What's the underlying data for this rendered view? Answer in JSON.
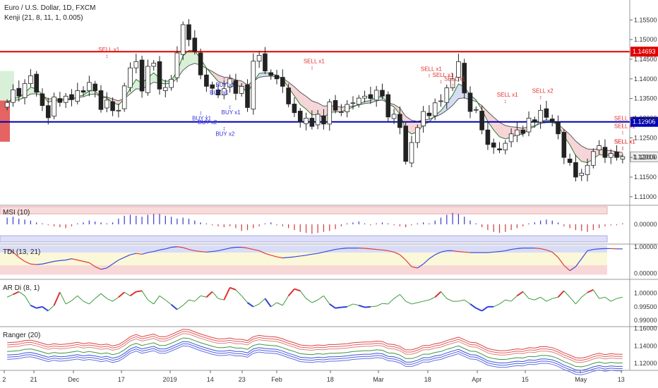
{
  "colors": {
    "up": "#ffffff",
    "down": "#222222",
    "wick": "#222222",
    "red_line": "#e00000",
    "blue_line": "#0000b4",
    "sell": "#e03030",
    "buy": "#3030e0",
    "cloud_red": "#f6d5d8",
    "cloud_green": "#d8f0d8",
    "cloud_blue": "#d6dcf4",
    "band_red": "#f5c6c6",
    "band_blue": "#c9cdf3",
    "band_yellow": "#fbf7d9"
  },
  "header": {
    "title": "Euro / U.S. Dollar, 1D, FXCM",
    "subtitle": "Kenji (21, 8, 11, 1, 0.005)"
  },
  "chart_data": [
    {
      "type": "candlestick",
      "title": "Euro / U.S. Dollar, 1D, FXCM",
      "ylim": [
        1.108,
        1.159
      ],
      "y_ticks": [
        "1.15500",
        "1.15000",
        "1.14500",
        "1.14000",
        "1.13500",
        "1.13000",
        "1.12500",
        "1.12000",
        "1.11500",
        "1.11000"
      ],
      "x_ticks": [
        "2",
        "21",
        "Dec",
        "17",
        "2019",
        "14",
        "23",
        "Feb",
        "18",
        "Mar",
        "18",
        "Apr",
        "15",
        "May",
        "13"
      ],
      "levels": [
        {
          "value": 1.14693,
          "label": "1.14693",
          "color": "#e00000"
        },
        {
          "value": 1.12906,
          "label": "1.12906",
          "color": "#0000b4"
        }
      ],
      "last_price": {
        "value": 1.12016,
        "label": "1.12016"
      },
      "close": [
        1.134,
        1.1372,
        1.1356,
        1.1388,
        1.1408,
        1.1366,
        1.1332,
        1.1301,
        1.1354,
        1.134,
        1.1356,
        1.1347,
        1.137,
        1.1366,
        1.1391,
        1.137,
        1.1322,
        1.1346,
        1.1319,
        1.132,
        1.1382,
        1.1428,
        1.1444,
        1.1369,
        1.1432,
        1.144,
        1.1374,
        1.1378,
        1.1399,
        1.1466,
        1.1538,
        1.15,
        1.147,
        1.141,
        1.1381,
        1.1376,
        1.1359,
        1.1375,
        1.14,
        1.1363,
        1.1381,
        1.1327,
        1.1445,
        1.146,
        1.142,
        1.1409,
        1.14,
        1.1381,
        1.1336,
        1.1314,
        1.129,
        1.13,
        1.1279,
        1.131,
        1.1285,
        1.1341,
        1.132,
        1.1316,
        1.1335,
        1.1339,
        1.1351,
        1.1356,
        1.135,
        1.1371,
        1.1356,
        1.1303,
        1.131,
        1.1276,
        1.119,
        1.1238,
        1.1276,
        1.1317,
        1.1306,
        1.1339,
        1.1344,
        1.1377,
        1.14,
        1.1444,
        1.1364,
        1.1317,
        1.1322,
        1.127,
        1.1233,
        1.1226,
        1.1219,
        1.1236,
        1.126,
        1.127,
        1.1261,
        1.13,
        1.129,
        1.132,
        1.1302,
        1.129,
        1.126,
        1.12,
        1.1187,
        1.115,
        1.116,
        1.118,
        1.1215,
        1.123,
        1.12,
        1.121,
        1.12,
        1.1202
      ],
      "series": [
        {
          "name": "MSI (10)",
          "ylim": [
            -1,
            1
          ],
          "ticks": [
            "0.00000"
          ],
          "values": [
            0.35,
            0.4,
            0.3,
            0.25,
            0.2,
            0.1,
            0.05,
            -0.05,
            -0.1,
            -0.15,
            -0.2,
            -0.1,
            0.05,
            0.1,
            0.2,
            0.15,
            0.1,
            0.05,
            0.1,
            0.3,
            0.45,
            0.5,
            0.45,
            0.4,
            0.5,
            0.55,
            0.55,
            0.45,
            0.4,
            0.3,
            0.35,
            0.3,
            0.2,
            0.1,
            0.05,
            -0.05,
            -0.1,
            -0.15,
            -0.1,
            -0.2,
            -0.35,
            -0.3,
            -0.2,
            -0.1,
            0.05,
            0.1,
            -0.05,
            -0.1,
            -0.2,
            -0.3,
            -0.4,
            -0.45,
            -0.5,
            -0.45,
            -0.4,
            -0.35,
            -0.25,
            -0.1,
            0.05,
            0.1,
            0.15,
            0.05,
            -0.05,
            0.05,
            0.1,
            0.05,
            -0.05,
            -0.1,
            -0.15,
            -0.05,
            0.05,
            0.1,
            0.05,
            0.2,
            0.35,
            0.5,
            0.6,
            0.55,
            0.4,
            0.2,
            0.05,
            -0.15,
            -0.3,
            -0.4,
            -0.45,
            -0.4,
            -0.3,
            -0.2,
            -0.1,
            0.05,
            0.1,
            0.2,
            0.25,
            0.2,
            0.1,
            -0.1,
            -0.2,
            -0.3,
            -0.35,
            -0.4,
            -0.3,
            -0.2,
            -0.1,
            -0.05,
            -0.05,
            0.05
          ]
        },
        {
          "name": "TDI (13, 21)",
          "ylim": [
            -0.2,
            1.1
          ],
          "ticks": [
            "1.00000",
            "0.00000"
          ],
          "values": [
            0.9,
            0.8,
            0.6,
            0.45,
            0.35,
            0.33,
            0.35,
            0.4,
            0.45,
            0.48,
            0.5,
            0.55,
            0.5,
            0.45,
            0.4,
            0.25,
            0.15,
            0.2,
            0.35,
            0.5,
            0.6,
            0.7,
            0.75,
            0.72,
            0.78,
            0.82,
            0.88,
            0.92,
            0.98,
            1.0,
            0.97,
            0.9,
            0.85,
            0.82,
            0.8,
            0.82,
            0.85,
            0.9,
            0.95,
            0.98,
            0.98,
            0.95,
            0.9,
            0.85,
            0.75,
            0.68,
            0.62,
            0.58,
            0.6,
            0.62,
            0.65,
            0.68,
            0.72,
            0.75,
            0.8,
            0.85,
            0.9,
            0.93,
            0.95,
            0.95,
            0.95,
            0.94,
            0.92,
            0.9,
            0.88,
            0.85,
            0.8,
            0.7,
            0.5,
            0.25,
            0.2,
            0.35,
            0.55,
            0.7,
            0.8,
            0.85,
            0.85,
            0.82,
            0.8,
            0.78,
            0.78,
            0.78,
            0.78,
            0.8,
            0.82,
            0.85,
            0.9,
            0.93,
            0.95,
            0.95,
            0.95,
            0.93,
            0.88,
            0.8,
            0.6,
            0.3,
            0.1,
            0.25,
            0.55,
            0.85,
            0.9,
            0.92,
            0.93,
            0.93,
            0.92,
            0.92
          ]
        },
        {
          "name": "AR Di (8, 1)",
          "ylim": [
            0.988,
            1.005
          ],
          "ticks": [
            "1.00000",
            "0.99500",
            "0.99000"
          ],
          "values": [
            0.9985,
            0.9995,
            1.0005,
            0.999,
            0.9955,
            0.9945,
            0.995,
            0.9935,
            0.9955,
            1.0003,
            0.996,
            0.9972,
            0.999,
            0.997,
            0.996,
            0.998,
            0.9998,
            0.998,
            0.997,
            0.9985,
            1.0003,
            0.999,
            1.0005,
            1.0008,
            0.9975,
            0.996,
            0.999,
            0.9975,
            0.9958,
            0.994,
            0.9955,
            0.9975,
            0.997,
            0.999,
            0.9985,
            1.0005,
            0.998,
            0.9975,
            1.002,
            1.0012,
            0.999,
            0.9965,
            0.995,
            0.996,
            0.998,
            0.995,
            0.9965,
            0.9955,
            0.999,
            1.0015,
            1.0008,
            0.998,
            0.9965,
            0.9975,
            0.999,
            0.996,
            0.9945,
            0.9948,
            0.995,
            0.996,
            0.9955,
            0.9948,
            0.995,
            0.9952,
            0.9962,
            0.996,
            0.998,
            0.9995,
            0.997,
            0.996,
            0.9965,
            0.997,
            0.9975,
            0.9985,
            1.0005,
            0.998,
            0.997,
            0.997,
            0.9975,
            0.996,
            0.9945,
            0.9935,
            0.995,
            0.995,
            0.996,
            0.9975,
            0.997,
            0.999,
            1.0005,
            0.998,
            0.9975,
            0.9985,
            0.997,
            0.998,
            0.9985,
            1.0008,
            0.9985,
            0.996,
            0.9985,
            1.0002,
            1.0012,
            0.998,
            0.9985,
            0.997,
            0.998,
            0.9985
          ]
        },
        {
          "name": "Ranger (20)",
          "ylim": [
            1.112,
            1.162
          ],
          "ticks": [
            "1.16000",
            "1.14000",
            "1.12000"
          ],
          "values": [
            1.1335,
            1.134,
            1.1345,
            1.136,
            1.1365,
            1.135,
            1.133,
            1.131,
            1.1325,
            1.1315,
            1.132,
            1.133,
            1.134,
            1.1325,
            1.1335,
            1.1325,
            1.131,
            1.132,
            1.13,
            1.1315,
            1.1355,
            1.1405,
            1.143,
            1.1405,
            1.142,
            1.1435,
            1.1405,
            1.1405,
            1.143,
            1.146,
            1.149,
            1.1485,
            1.146,
            1.1435,
            1.1415,
            1.1395,
            1.138,
            1.138,
            1.139,
            1.1375,
            1.1375,
            1.136,
            1.1405,
            1.142,
            1.141,
            1.1405,
            1.14,
            1.138,
            1.1355,
            1.1335,
            1.131,
            1.1305,
            1.13,
            1.131,
            1.1305,
            1.1315,
            1.1315,
            1.132,
            1.1325,
            1.1335,
            1.134,
            1.1345,
            1.1345,
            1.1355,
            1.135,
            1.132,
            1.1315,
            1.1295,
            1.1255,
            1.1255,
            1.1275,
            1.1305,
            1.1305,
            1.1325,
            1.1335,
            1.136,
            1.138,
            1.14,
            1.137,
            1.134,
            1.1335,
            1.1305,
            1.127,
            1.1255,
            1.1245,
            1.1245,
            1.1255,
            1.1265,
            1.126,
            1.128,
            1.1275,
            1.129,
            1.129,
            1.128,
            1.1255,
            1.122,
            1.1195,
            1.1165,
            1.116,
            1.1175,
            1.12,
            1.1215,
            1.12,
            1.121,
            1.1205,
            1.1205
          ]
        }
      ],
      "signals": [
        {
          "text": "SELL x1",
          "kind": "sell",
          "bar": 17,
          "y": 1.147
        },
        {
          "text": "SELL x1",
          "kind": "sell",
          "bar": 52,
          "y": 1.144
        },
        {
          "text": "SELL x1",
          "kind": "sell",
          "bar": 72,
          "y": 1.142
        },
        {
          "text": "SELL x1",
          "kind": "sell",
          "bar": 74,
          "y": 1.1405
        },
        {
          "text": "SELL x1",
          "kind": "sell",
          "bar": 76,
          "y": 1.1395
        },
        {
          "text": "SELL x1",
          "kind": "sell",
          "bar": 85,
          "y": 1.1355
        },
        {
          "text": "SELL x2",
          "kind": "sell",
          "bar": 91,
          "y": 1.1365
        },
        {
          "text": "SELL x1",
          "kind": "sell",
          "bar": 108,
          "y": 1.1295
        },
        {
          "text": "SELL x1",
          "kind": "sell",
          "bar": 124,
          "y": 1.1275
        },
        {
          "text": "SELL x1",
          "kind": "sell",
          "bar": 125,
          "y": 1.1235
        },
        {
          "text": "SELL x1",
          "kind": "sell",
          "bar": 129,
          "y": 1.1235
        },
        {
          "text": "BUY x1",
          "kind": "buy",
          "bar": 33,
          "y": 1.1295
        },
        {
          "text": "BUY x2",
          "kind": "buy",
          "bar": 34,
          "y": 1.1285
        },
        {
          "text": "BUY x1",
          "kind": "buy",
          "bar": 36,
          "y": 1.136
        },
        {
          "text": "BUY x1",
          "kind": "buy",
          "bar": 37,
          "y": 1.138
        },
        {
          "text": "BUY x1",
          "kind": "buy",
          "bar": 38,
          "y": 1.131
        },
        {
          "text": "BUY x2",
          "kind": "buy",
          "bar": 37,
          "y": 1.1255
        }
      ]
    }
  ]
}
